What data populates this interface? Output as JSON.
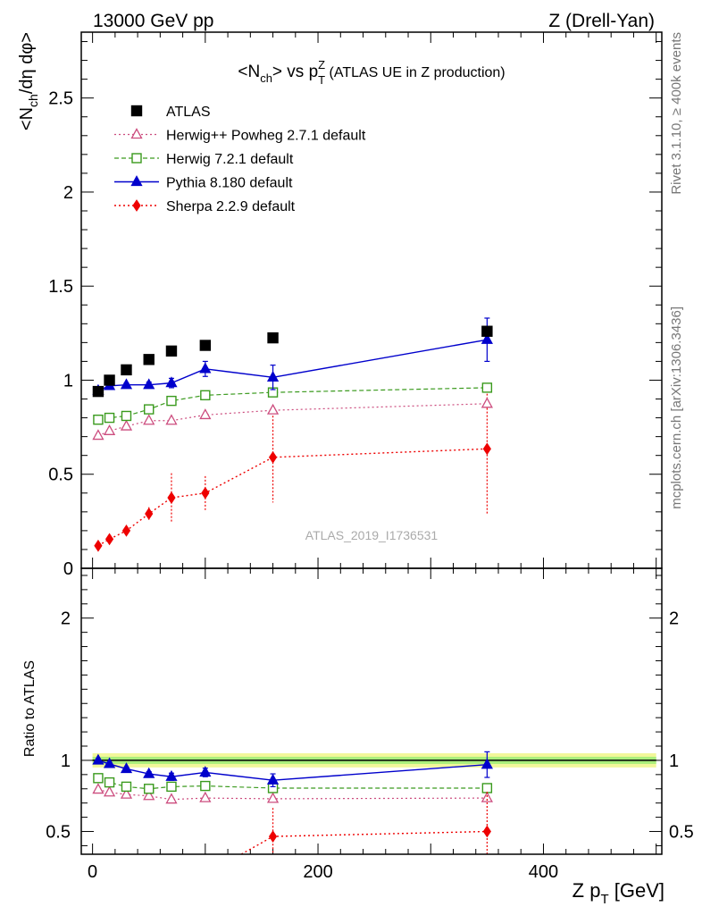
{
  "header": {
    "left": "13000 GeV pp",
    "right": "Z (Drell-Yan)"
  },
  "side_labels": {
    "rivet": "Rivet 3.1.10, ≥ 400k events",
    "mcplots": "mcplots.cern.ch [arXiv:1306.3436]"
  },
  "chart_data": {
    "type": "scatter",
    "title_parts": {
      "n_open": "<N",
      "n_sub": "ch",
      "mid": "> vs p",
      "p_sup": "Z",
      "p_sub": "T",
      "tail": " (ATLAS UE in Z production)"
    },
    "watermark": "ATLAS_2019_I1736531",
    "main": {
      "ylabel_parts": {
        "a": "<N",
        "sub": "ch",
        "b": "/dη dφ>"
      },
      "xlim": [
        -10,
        505
      ],
      "ylim": [
        0,
        2.85
      ],
      "yticks": [
        0,
        0.5,
        1,
        1.5,
        2,
        2.5
      ],
      "ytick_labels": [
        "0",
        "0.5",
        "1",
        "1.5",
        "2",
        "2.5"
      ],
      "series": [
        {
          "name": "ATLAS",
          "key": "atlas",
          "color": "#000000",
          "x": [
            5,
            15,
            30,
            50,
            70,
            100,
            160,
            350
          ],
          "y": [
            0.94,
            1.0,
            1.055,
            1.11,
            1.155,
            1.185,
            1.225,
            1.26
          ],
          "err": [
            0.01,
            0.01,
            0.01,
            0.01,
            0.01,
            0.01,
            0.015,
            0.02
          ]
        },
        {
          "name": "Herwig++ Powheg 2.7.1 default",
          "key": "herwigpp",
          "color": "#cc4c7e",
          "x": [
            5,
            15,
            30,
            50,
            70,
            100,
            160,
            350
          ],
          "y": [
            0.705,
            0.73,
            0.755,
            0.785,
            0.785,
            0.815,
            0.84,
            0.875
          ],
          "err": [
            0.008,
            0.008,
            0.008,
            0.008,
            0.008,
            0.008,
            0.01,
            0.012
          ]
        },
        {
          "name": "Herwig 7.2.1 default",
          "key": "herwig7",
          "color": "#3a9a1d",
          "x": [
            5,
            15,
            30,
            50,
            70,
            100,
            160,
            350
          ],
          "y": [
            0.79,
            0.8,
            0.81,
            0.845,
            0.89,
            0.92,
            0.935,
            0.96
          ],
          "err": [
            0.008,
            0.008,
            0.008,
            0.008,
            0.008,
            0.008,
            0.01,
            0.012
          ]
        },
        {
          "name": "Pythia 8.180 default",
          "key": "pythia",
          "color": "#0000cc",
          "x": [
            5,
            15,
            30,
            50,
            70,
            100,
            160,
            350
          ],
          "y": [
            0.945,
            0.97,
            0.975,
            0.975,
            0.985,
            1.06,
            1.015,
            1.215
          ],
          "err": [
            0.01,
            0.01,
            0.01,
            0.015,
            0.025,
            0.04,
            0.065,
            0.115
          ]
        },
        {
          "name": "Sherpa 2.2.9 default",
          "key": "sherpa",
          "color": "#ee0000",
          "x": [
            5,
            15,
            30,
            50,
            70,
            100,
            160,
            350
          ],
          "y": [
            0.12,
            0.155,
            0.2,
            0.29,
            0.375,
            0.4,
            0.59,
            0.635
          ],
          "err": [
            0.015,
            0.02,
            0.02,
            0.035,
            0.13,
            0.09,
            0.24,
            0.35
          ]
        }
      ]
    },
    "ratio": {
      "ylabel": "Ratio to ATLAS",
      "ylim": [
        0.34,
        2.35
      ],
      "yticks": [
        0.5,
        1,
        2
      ],
      "ytick_labels": [
        "0.5",
        "1",
        "2"
      ],
      "band_inner": 0.025,
      "band_outer": 0.05,
      "series": [
        {
          "key": "herwigpp",
          "x": [
            5,
            15,
            30,
            50,
            70,
            100,
            160,
            350
          ],
          "y": [
            0.795,
            0.775,
            0.76,
            0.75,
            0.725,
            0.735,
            0.73,
            0.735
          ],
          "err": [
            0.01,
            0.01,
            0.01,
            0.01,
            0.01,
            0.01,
            0.012,
            0.015
          ]
        },
        {
          "key": "herwig7",
          "x": [
            5,
            15,
            30,
            50,
            70,
            100,
            160,
            350
          ],
          "y": [
            0.875,
            0.845,
            0.815,
            0.8,
            0.815,
            0.82,
            0.805,
            0.805
          ],
          "err": [
            0.01,
            0.01,
            0.01,
            0.01,
            0.01,
            0.01,
            0.012,
            0.015
          ]
        },
        {
          "key": "pythia",
          "x": [
            5,
            15,
            30,
            50,
            70,
            100,
            160,
            350
          ],
          "y": [
            1.0,
            0.975,
            0.94,
            0.905,
            0.885,
            0.915,
            0.86,
            0.97
          ],
          "err": [
            0.01,
            0.01,
            0.012,
            0.015,
            0.025,
            0.03,
            0.045,
            0.09
          ]
        },
        {
          "key": "sherpa",
          "x": [
            160,
            350
          ],
          "y": [
            0.465,
            0.5
          ],
          "err": [
            0.2,
            0.28
          ],
          "line_from": {
            "x": 132,
            "y": 0.34
          }
        }
      ]
    },
    "xaxis": {
      "xticks": [
        0,
        200,
        400
      ],
      "xtick_labels": [
        "0",
        "200",
        "400"
      ],
      "xlabel_parts": {
        "a": "Z p",
        "sub": "T",
        "b": " [GeV]"
      }
    }
  }
}
